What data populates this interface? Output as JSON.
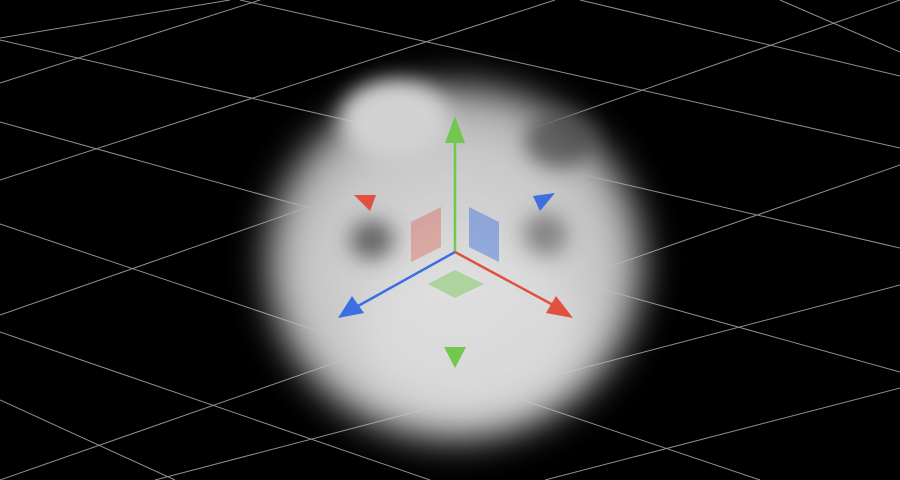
{
  "viewport": {
    "background_color": "#000000",
    "grid_color": "#bfbfbf",
    "object": {
      "type": "blurred-textured-sphere",
      "base_color": "#cfcfcf"
    },
    "gizmo": {
      "type": "translate",
      "axes": [
        {
          "axis": "x",
          "color": "#e0513f"
        },
        {
          "axis": "y",
          "color": "#72c74f"
        },
        {
          "axis": "z",
          "color": "#3c6fe0"
        }
      ],
      "plane_handles": [
        {
          "plane": "xy",
          "color": "#e0513f"
        },
        {
          "plane": "yz",
          "color": "#3c6fe0"
        },
        {
          "plane": "xz",
          "color": "#72c74f"
        }
      ]
    }
  }
}
